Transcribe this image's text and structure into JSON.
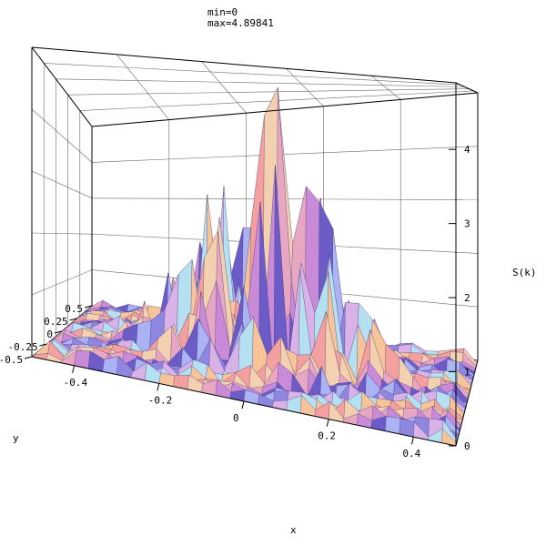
{
  "header": {
    "min_text": "min=0",
    "max_text": "max=4.89841"
  },
  "chart_data": {
    "type": "surface",
    "title": "",
    "xlabel": "x",
    "ylabel": "y",
    "zlabel": "S(k)",
    "x_ticks": [
      "-0.4",
      "-0.2",
      "0",
      "0.2",
      "0.4"
    ],
    "y_ticks": [
      "-0.5",
      "-0.25",
      "0",
      "0.25",
      "0.5"
    ],
    "z_ticks": [
      "0",
      "1",
      "2",
      "3",
      "4"
    ],
    "xlim": [
      -0.5,
      0.5
    ],
    "ylim": [
      -0.5,
      0.5
    ],
    "zlim": [
      0,
      4.89841
    ],
    "grid": true,
    "min": 0,
    "max": 4.89841,
    "shape": "noisy peaks concentrated near the center, falling toward the edges"
  }
}
